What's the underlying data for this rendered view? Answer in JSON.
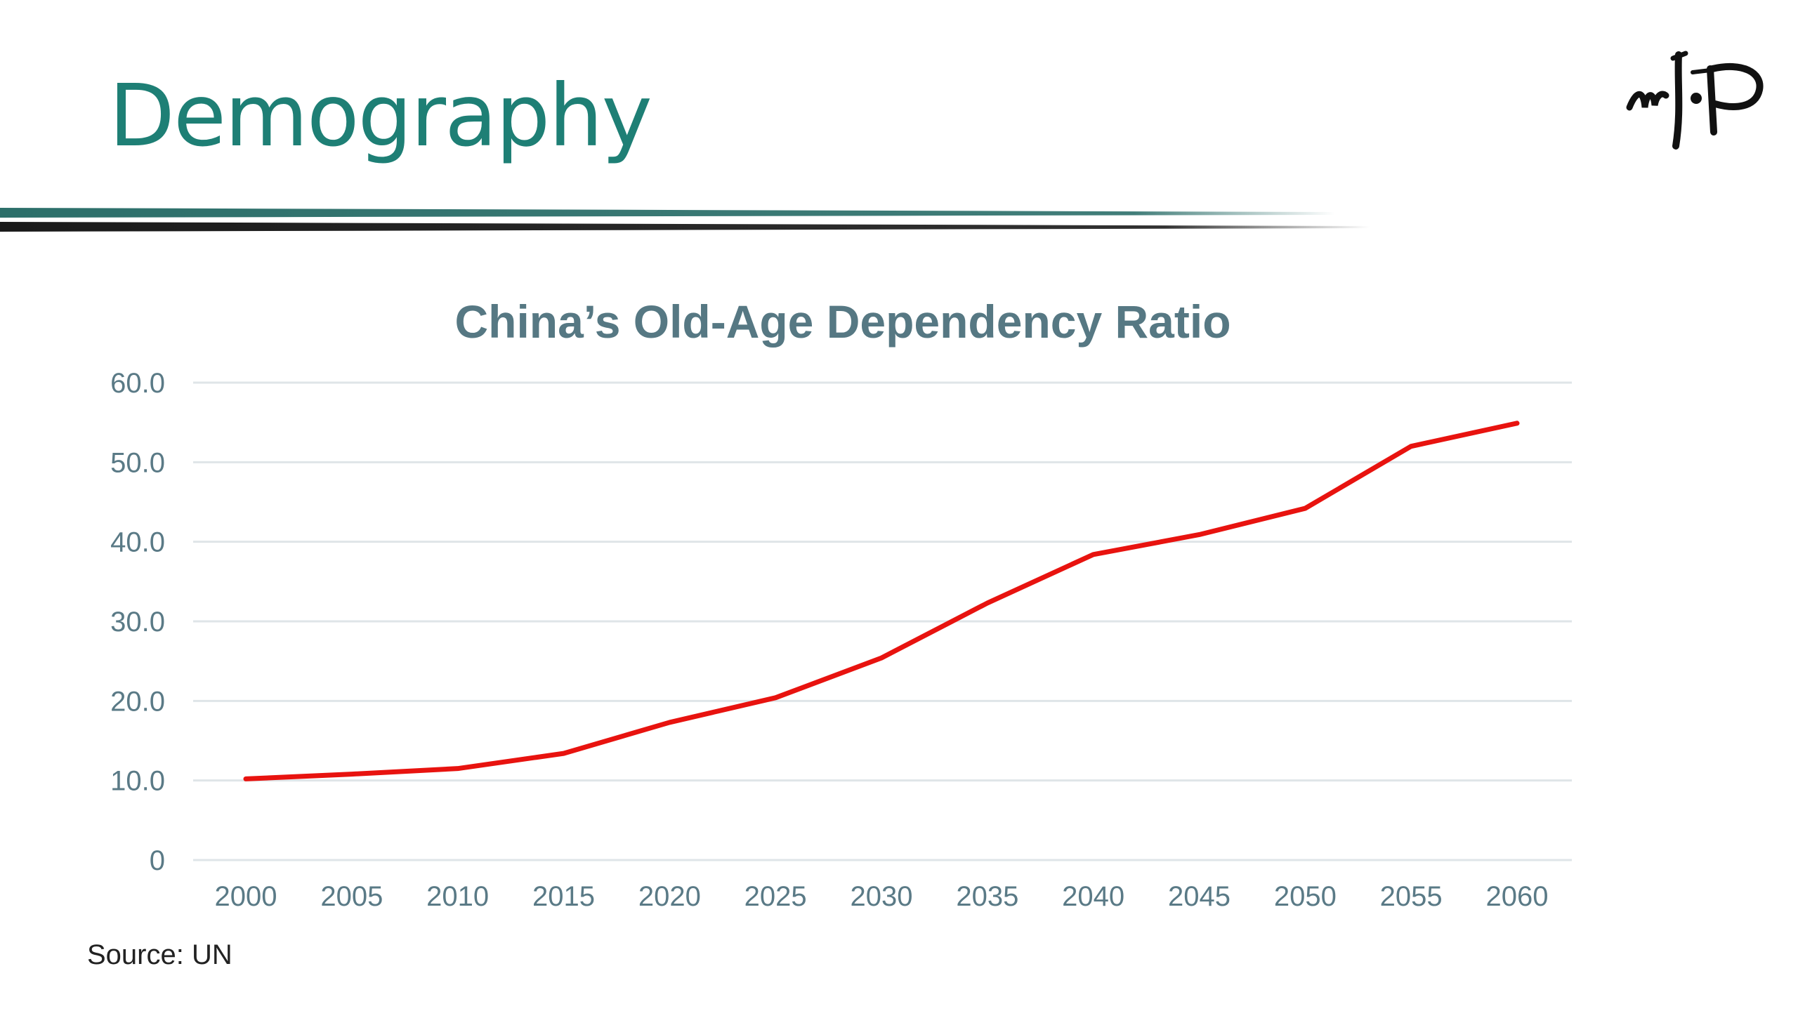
{
  "slide": {
    "title": "Demography",
    "source": "Source: UN",
    "logo_icon": "calligraphy-logo",
    "colors": {
      "title": "#1e7f75",
      "divider_teal": "#2c6f6a",
      "divider_dark": "#1a1a1a"
    }
  },
  "chart_data": {
    "type": "line",
    "title": "China’s Old-Age Dependency Ratio",
    "xlabel": "",
    "ylabel": "",
    "x": [
      "2000",
      "2005",
      "2010",
      "2015",
      "2020",
      "2025",
      "2030",
      "2035",
      "2040",
      "2045",
      "2050",
      "2055",
      "2060"
    ],
    "series": [
      {
        "values": [
          10.2,
          10.8,
          11.5,
          13.4,
          17.3,
          20.4,
          25.4,
          32.3,
          38.4,
          40.9,
          44.2,
          52.0,
          54.9
        ],
        "color": "#e8130f"
      }
    ],
    "ylim": [
      0,
      60
    ],
    "yticks": [
      "0",
      "10.0",
      "20.0",
      "30.0",
      "40.0",
      "50.0",
      "60.0"
    ],
    "grid": true,
    "legend": "none",
    "colors": {
      "tick_text": "#5a7a86",
      "grid": "#dfe5e8",
      "title": "#567883"
    }
  }
}
